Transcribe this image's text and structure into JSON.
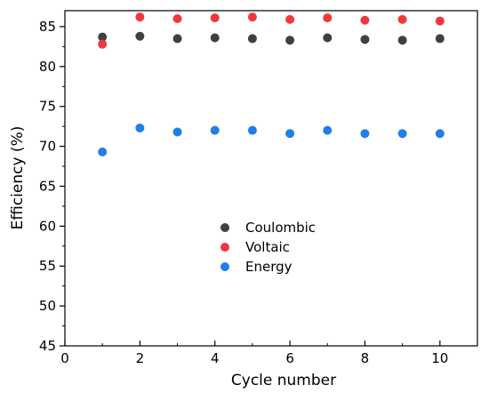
{
  "chart_data": {
    "type": "scatter",
    "xlabel": "Cycle number",
    "ylabel": "Efficiency (%)",
    "xlim": [
      0,
      11
    ],
    "ylim": [
      45,
      87
    ],
    "x_ticks": [
      0,
      2,
      4,
      6,
      8,
      10
    ],
    "y_ticks": [
      45,
      50,
      55,
      60,
      65,
      70,
      75,
      80,
      85
    ],
    "x": [
      1,
      2,
      3,
      4,
      5,
      6,
      7,
      8,
      9,
      10
    ],
    "legend_position": "center",
    "grid": false,
    "series": [
      {
        "name": "Coulombic",
        "color": "#404040",
        "values": [
          83.7,
          83.8,
          83.5,
          83.6,
          83.5,
          83.3,
          83.6,
          83.4,
          83.3,
          83.5
        ]
      },
      {
        "name": "Voltaic",
        "color": "#f0383c",
        "values": [
          82.8,
          86.2,
          86.0,
          86.1,
          86.2,
          85.9,
          86.1,
          85.8,
          85.9,
          85.7
        ]
      },
      {
        "name": "Energy",
        "color": "#1f7fe6",
        "values": [
          69.3,
          72.3,
          71.8,
          72.0,
          72.0,
          71.6,
          72.0,
          71.6,
          71.6,
          71.6
        ]
      }
    ]
  }
}
